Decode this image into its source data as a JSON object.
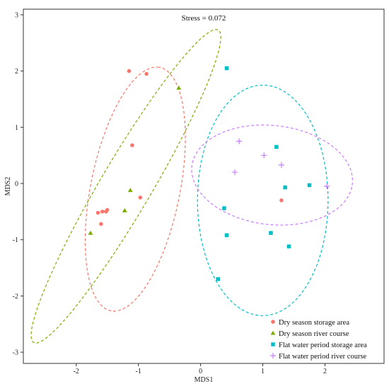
{
  "chart_data": {
    "type": "scatter",
    "title": "",
    "annotation": "Stress = 0.072",
    "xlabel": "MDS1",
    "ylabel": "MDS2",
    "xlim": [
      -2.85,
      2.95
    ],
    "ylim": [
      -3.2,
      3.1
    ],
    "xticks": [
      -2,
      -1,
      0,
      1,
      2
    ],
    "yticks": [
      -3,
      -2,
      -1,
      0,
      1,
      2,
      3
    ],
    "grid": false,
    "legend_position": "bottom-right",
    "series": [
      {
        "name": "Dry season storage area",
        "color": "#F8766D",
        "marker": "circle",
        "points": [
          [
            -1.15,
            2.0
          ],
          [
            -0.87,
            1.95
          ],
          [
            -1.1,
            0.68
          ],
          [
            -0.97,
            -0.25
          ],
          [
            -1.65,
            -0.52
          ],
          [
            -1.58,
            -0.5
          ],
          [
            -1.52,
            -0.5
          ],
          [
            -1.5,
            -0.47
          ],
          [
            -1.6,
            -0.72
          ],
          [
            1.3,
            -0.3
          ]
        ]
      },
      {
        "name": "Dry season river course",
        "color": "#7CAE00",
        "marker": "triangle",
        "points": [
          [
            -0.35,
            1.7
          ],
          [
            -1.13,
            -0.12
          ],
          [
            -1.22,
            -0.48
          ],
          [
            -1.77,
            -0.88
          ]
        ]
      },
      {
        "name": "Flat water period storage area",
        "color": "#00BFC4",
        "marker": "square",
        "points": [
          [
            0.42,
            2.05
          ],
          [
            1.22,
            0.65
          ],
          [
            1.36,
            -0.07
          ],
          [
            1.75,
            -0.03
          ],
          [
            0.38,
            -0.44
          ],
          [
            0.42,
            -0.92
          ],
          [
            1.13,
            -0.88
          ],
          [
            1.42,
            -1.12
          ],
          [
            0.28,
            -1.7
          ]
        ]
      },
      {
        "name": "Flat water period river course",
        "color": "#C77CFF",
        "marker": "plus",
        "points": [
          [
            0.62,
            0.75
          ],
          [
            1.02,
            0.5
          ],
          [
            1.3,
            0.33
          ],
          [
            2.03,
            -0.05
          ],
          [
            0.55,
            0.2
          ]
        ]
      }
    ],
    "ellipses": [
      {
        "series": "Dry season storage area",
        "center": [
          -1.05,
          -0.1
        ],
        "semi_major": 2.2,
        "semi_minor": 0.72,
        "angle_deg": 80
      },
      {
        "series": "Dry season river course",
        "center": [
          -1.2,
          -0.05
        ],
        "semi_major": 3.15,
        "semi_minor": 0.42,
        "angle_deg": 62
      },
      {
        "series": "Flat water period storage area",
        "center": [
          1.0,
          -0.3
        ],
        "semi_major": 2.05,
        "semi_minor": 1.05,
        "angle_deg": 90
      },
      {
        "series": "Flat water period river course",
        "center": [
          1.15,
          0.15
        ],
        "semi_major": 1.3,
        "semi_minor": 0.88,
        "angle_deg": -8
      }
    ]
  }
}
